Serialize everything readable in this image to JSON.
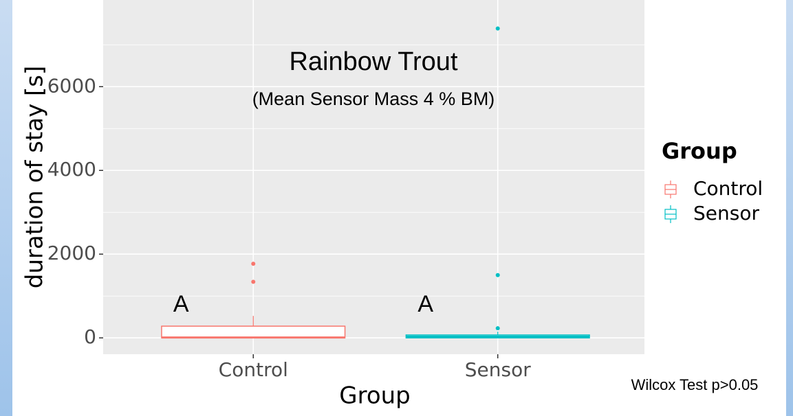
{
  "chart_data": {
    "type": "boxplot",
    "title": "Rainbow Trout",
    "subtitle": "(Mean Sensor Mass 4 % BM)",
    "x_label": "Group",
    "y_label": "duration of stay [s]",
    "categories": [
      "Control",
      "Sensor"
    ],
    "series": [
      {
        "name": "Control",
        "color": "#f8766d",
        "whisker_low": 0,
        "q1": 0,
        "median": 10,
        "q3": 280,
        "whisker_high": 525,
        "outliers": [
          1340,
          1770
        ]
      },
      {
        "name": "Sensor",
        "color": "#00bfc4",
        "whisker_low": 0,
        "q1": 0,
        "median": 30,
        "q3": 70,
        "whisker_high": 150,
        "outliers": [
          230,
          1500,
          7390
        ]
      }
    ],
    "annotations": [
      "A",
      "A"
    ],
    "footnote": "Wilcox Test p>0.05",
    "legend_title": "Group",
    "legend_position": "right",
    "ylim": [
      -390,
      8070
    ],
    "yticks": [
      0,
      2000,
      4000,
      6000
    ],
    "y_minor_ticks": [
      1000,
      3000,
      5000,
      7000
    ],
    "grid": true
  }
}
